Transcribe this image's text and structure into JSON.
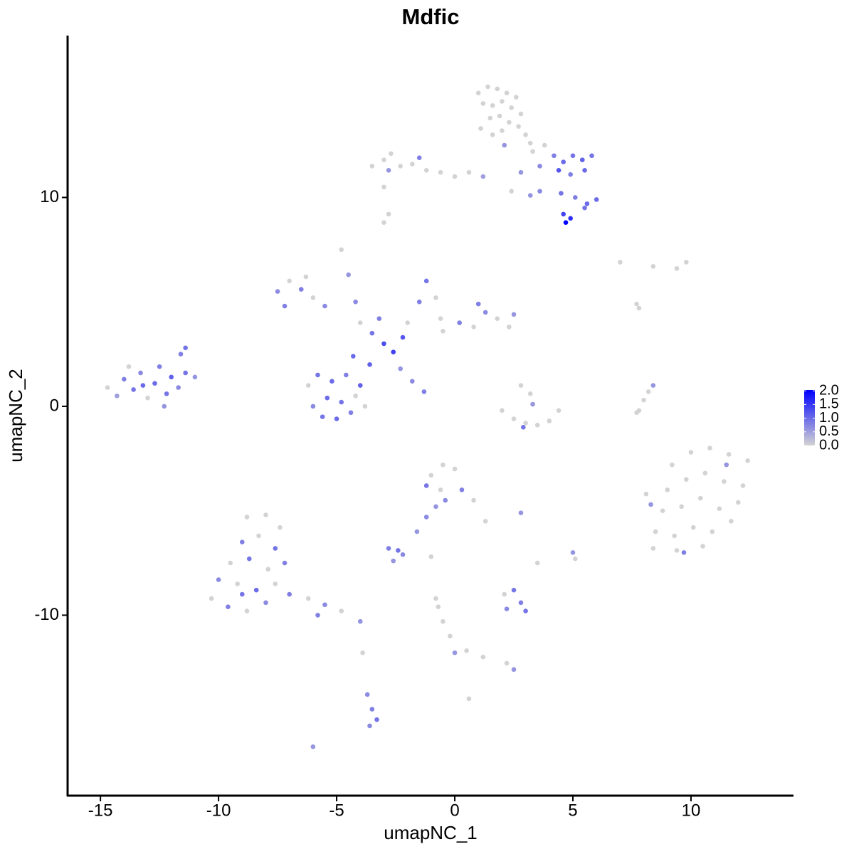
{
  "chart_data": {
    "type": "scatter",
    "title": "Mdfic",
    "x_label": "umapNC_1",
    "y_label": "umapNC_2",
    "xlim": [
      -16.39,
      14.34
    ],
    "ylim": [
      -18.64,
      17.75
    ],
    "xticks": [
      -15,
      -10,
      -5,
      0,
      5,
      10
    ],
    "yticks": [
      -10,
      0,
      10
    ],
    "color_low": "#d3d3d3",
    "color_high": "#0000ff",
    "clim": [
      0,
      2.03
    ],
    "cticks": [
      {
        "value": 0,
        "label": "0.0"
      },
      0.5,
      {
        "value": 1,
        "label": "1.0"
      },
      1.5,
      {
        "value": 2,
        "label": "2.0"
      }
    ],
    "x": [
      1.0,
      1.4,
      1.8,
      2.2,
      2.6,
      1.2,
      1.6,
      2.0,
      2.4,
      2.8,
      1.5,
      1.9,
      2.3,
      2.7,
      1.1,
      1.6,
      2.0,
      3.0,
      3.2,
      2.1,
      3.3,
      3.8,
      4.2,
      4.6,
      5.0,
      5.4,
      5.8,
      4.4,
      4.9,
      5.5,
      3.6,
      2.8,
      4.5,
      5.1,
      5.6,
      6.0,
      5.5,
      4.6,
      4.9,
      4.7,
      -3.5,
      -3.0,
      -2.7,
      -2.3,
      -1.8,
      -1.2,
      -0.6,
      0,
      0.6,
      1.2,
      -2.8,
      -1.5,
      -3.0,
      -2.8,
      -3.0,
      2.4,
      3.2,
      3.6,
      -14.7,
      -14.3,
      -14.0,
      -13.6,
      -13.3,
      -13.0,
      -12.7,
      -12.5,
      -12.2,
      -12.0,
      -11.7,
      -11.4,
      -11.0,
      -11.6,
      -11.4,
      -13.8,
      -12.3,
      -13.2,
      -7.5,
      -7.0,
      -6.5,
      -6.0,
      -5.5,
      -7.2,
      -6.3,
      -4.8,
      -4.5,
      -4.2,
      -2.0,
      -1.5,
      -1.2,
      -0.8,
      -0.6,
      -0.5,
      0.2,
      0.8,
      1.3,
      1.8,
      2.3,
      2.5,
      1.0,
      -3.5,
      -3.0,
      -2.6,
      -2.2,
      -4.0,
      -3.2,
      -4.3,
      -3.6,
      -6.2,
      -5.8,
      -5.2,
      -4.6,
      -4.0,
      -6.0,
      -5.4,
      -4.8,
      -4.2,
      -5.6,
      -5.0,
      -4.4,
      -3.8,
      -2.3,
      -1.8,
      -1.3,
      2.0,
      2.5,
      3.0,
      3.5,
      4.0,
      4.4,
      3.2,
      3.3,
      2.9,
      2.8,
      9.2,
      10.0,
      10.8,
      11.6,
      12.4,
      9.0,
      9.8,
      10.6,
      11.4,
      12.2,
      8.8,
      9.6,
      10.4,
      11.2,
      12.0,
      8.5,
      9.3,
      10.1,
      10.9,
      11.7,
      8.4,
      9.4,
      10.5,
      8.1,
      11.5,
      9.7,
      8.3,
      -8.8,
      -8.0,
      -7.4,
      -9.0,
      -8.3,
      -7.6,
      -9.5,
      -8.7,
      -7.9,
      -7.2,
      -10.0,
      -9.2,
      -8.4,
      -7.6,
      -10.3,
      -9.6,
      -8.8,
      -8.0,
      -7.0,
      -6.2,
      -5.5,
      -4.8,
      -4.0,
      -5.8,
      -9.0,
      -1.0,
      -0.5,
      0.0,
      -1.2,
      -0.6,
      0.3,
      0.8,
      -0.4,
      1.3,
      -0.8,
      -1.2,
      -1.6,
      -2.8,
      -2.4,
      -2.2,
      -2.6,
      2.1,
      2.5,
      2.8,
      2.2,
      3.0,
      -0.5,
      -0.2,
      0,
      0.5,
      1.2,
      2.2,
      2.5,
      -0.7,
      -3.7,
      -3.5,
      -3.3,
      -3.6,
      -6.0,
      -3.9,
      0.6,
      2.8,
      3.5,
      5.0,
      5.1,
      -1.0,
      -0.8,
      7.8,
      8.0,
      8.2,
      8.4,
      7.7,
      7.0,
      8.4,
      9.4,
      9.8,
      7.7,
      7.8
    ],
    "y": [
      15.0,
      15.3,
      15.2,
      15.0,
      14.8,
      14.5,
      14.4,
      14.6,
      14.3,
      14.0,
      13.8,
      13.9,
      13.6,
      13.4,
      13.3,
      13.0,
      13.2,
      13.0,
      12.6,
      12.5,
      12.2,
      12.5,
      12.0,
      11.7,
      12.0,
      11.8,
      12.0,
      11.3,
      11.1,
      11.3,
      11.5,
      11.2,
      10.2,
      10.0,
      9.7,
      9.9,
      9.5,
      9.2,
      9.0,
      8.8,
      11.5,
      11.8,
      12.1,
      11.5,
      11.6,
      11.3,
      11.2,
      11.0,
      11.2,
      11.0,
      11.3,
      11.9,
      10.5,
      9.2,
      8.8,
      10.3,
      10.1,
      10.3,
      0.9,
      0.5,
      1.3,
      0.8,
      1.6,
      0.4,
      1.1,
      1.9,
      0.6,
      1.4,
      0.9,
      1.6,
      1.4,
      2.5,
      2.8,
      1.9,
      0.0,
      1.0,
      5.5,
      6.0,
      5.6,
      5.2,
      4.8,
      4.8,
      6.2,
      7.5,
      6.3,
      5.0,
      4.0,
      5.0,
      6.0,
      5.2,
      4.2,
      3.6,
      4.0,
      3.8,
      4.5,
      4.2,
      3.8,
      4.4,
      4.9,
      3.5,
      3.0,
      2.6,
      3.3,
      4.0,
      4.2,
      2.4,
      2.0,
      1.0,
      1.5,
      1.2,
      1.5,
      1.0,
      0.0,
      0.4,
      0.2,
      0.5,
      -0.5,
      -0.6,
      -0.3,
      0.0,
      1.8,
      1.2,
      0.7,
      -0.2,
      -0.6,
      -0.8,
      -0.9,
      -0.7,
      -0.2,
      0.6,
      0.1,
      -1.0,
      1.0,
      -2.8,
      -2.2,
      -2.0,
      -2.3,
      -2.6,
      -4.0,
      -3.5,
      -3.2,
      -3.6,
      -3.8,
      -5.0,
      -4.8,
      -4.4,
      -4.9,
      -4.6,
      -6.0,
      -6.2,
      -5.8,
      -6.0,
      -5.5,
      -6.8,
      -6.9,
      -6.7,
      -4.2,
      -2.8,
      -7.0,
      -4.7,
      -5.3,
      -5.2,
      -5.8,
      -6.5,
      -6.2,
      -6.8,
      -7.5,
      -7.3,
      -7.8,
      -7.5,
      -8.3,
      -8.5,
      -8.8,
      -8.5,
      -9.2,
      -9.6,
      -9.8,
      -9.4,
      -9.0,
      -9.2,
      -9.5,
      -9.8,
      -10.3,
      -10.0,
      -9.0,
      -3.3,
      -2.8,
      -3.0,
      -3.8,
      -4.0,
      -4.0,
      -4.5,
      -4.5,
      -5.5,
      -4.8,
      -5.3,
      -6.0,
      -6.8,
      -6.9,
      -7.1,
      -7.4,
      -9.0,
      -8.8,
      -9.4,
      -9.7,
      -9.8,
      -10.3,
      -11.0,
      -11.8,
      -11.7,
      -12.0,
      -12.3,
      -12.6,
      -9.6,
      -13.8,
      -14.5,
      -15.0,
      -15.3,
      -16.3,
      -11.8,
      -14.0,
      -5.1,
      -7.5,
      -7.0,
      -7.3,
      -7.2,
      -9.2,
      -0.2,
      0.3,
      0.7,
      1.0,
      -0.3,
      6.9,
      6.7,
      6.6,
      6.9,
      4.9,
      4.7
    ],
    "values": [
      0,
      0,
      0,
      0,
      0,
      0,
      0,
      0,
      0,
      0,
      0,
      0,
      0,
      0,
      0,
      0,
      0,
      0,
      0,
      0.6,
      0,
      0,
      0.8,
      1.0,
      0.9,
      1.1,
      0.9,
      1.2,
      0.8,
      1.0,
      0.7,
      0.6,
      0.9,
      0.8,
      1.0,
      1.0,
      0.9,
      1.4,
      1.6,
      2.0,
      0,
      0,
      0,
      0,
      0,
      0,
      0,
      0,
      0,
      0.5,
      0.6,
      0.8,
      0,
      0,
      0,
      0,
      0.6,
      0.7,
      0,
      0.5,
      0.8,
      0.9,
      0.7,
      0,
      1.0,
      0.8,
      0.9,
      1.1,
      0.7,
      0.9,
      0.6,
      0.8,
      0.9,
      0,
      0.6,
      1.0,
      0.7,
      0,
      0.8,
      0,
      0.7,
      0.8,
      0,
      0,
      0.6,
      0.7,
      0,
      0.8,
      0.9,
      0,
      0,
      0,
      0.8,
      0,
      0.7,
      0,
      0,
      0.6,
      0.8,
      0.9,
      1.3,
      1.4,
      1.2,
      0,
      0.8,
      1.0,
      1.1,
      0,
      0.9,
      1.0,
      0.8,
      1.1,
      0.7,
      1.0,
      0.9,
      0,
      0.9,
      1.0,
      0.8,
      0,
      0.6,
      0.7,
      0.8,
      0,
      0,
      0,
      0,
      0,
      0,
      0,
      0.6,
      0.9,
      0,
      0,
      0,
      0,
      0,
      0,
      0,
      0,
      0,
      0,
      0,
      0,
      0,
      0,
      0,
      0,
      0,
      0,
      0,
      0,
      0,
      0,
      0,
      0,
      0,
      0.6,
      0.8,
      0.6,
      0,
      0,
      0,
      0.8,
      0,
      0.9,
      0,
      0.9,
      0,
      0.8,
      0.7,
      0,
      1.0,
      0,
      0,
      0.8,
      0,
      0.7,
      0.8,
      0,
      0.7,
      0,
      0.6,
      0.8,
      0.9,
      0,
      0,
      0,
      0.9,
      0,
      0.8,
      0,
      0.7,
      0,
      0.6,
      0.7,
      0.6,
      0.8,
      0.9,
      0.7,
      0.6,
      0,
      0.9,
      0.8,
      0.7,
      0.9,
      0,
      0,
      0.6,
      0,
      0,
      0,
      0.6,
      0,
      0.7,
      0.8,
      0.9,
      0.7,
      0.6,
      0,
      0,
      0.6,
      0,
      0.6,
      0,
      0,
      0,
      0,
      0,
      0,
      0.6,
      0,
      0,
      0,
      0,
      0,
      0,
      0
    ]
  }
}
